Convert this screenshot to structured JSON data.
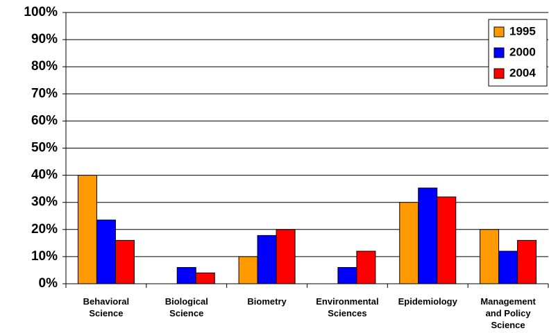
{
  "chart_data": {
    "type": "bar",
    "categories": [
      "Behavioral\nScience",
      "Biological\nScience",
      "Biometry",
      "Environmental\nSciences",
      "Epidemiology",
      "Management\nand Policy\nScience"
    ],
    "series": [
      {
        "name": "1995",
        "color": "#ff9900",
        "values": [
          40,
          0,
          10,
          0,
          30,
          20
        ]
      },
      {
        "name": "2000",
        "color": "#0000ff",
        "values": [
          23.5,
          6,
          17.8,
          6,
          35.3,
          12
        ]
      },
      {
        "name": "2004",
        "color": "#ff0000",
        "values": [
          16,
          4,
          20,
          12,
          32,
          16
        ]
      }
    ],
    "ylim": [
      0,
      100
    ],
    "yticks": [
      {
        "value": 0,
        "label": "0%"
      },
      {
        "value": 10,
        "label": "10%"
      },
      {
        "value": 20,
        "label": "20%"
      },
      {
        "value": 30,
        "label": "30%"
      },
      {
        "value": 40,
        "label": "40%"
      },
      {
        "value": 50,
        "label": "50%"
      },
      {
        "value": 60,
        "label": "60%"
      },
      {
        "value": 70,
        "label": "70%"
      },
      {
        "value": 80,
        "label": "80%"
      },
      {
        "value": 90,
        "label": "90%"
      },
      {
        "value": 100,
        "label": "100%"
      }
    ],
    "grid": true,
    "legend": "top-right"
  }
}
